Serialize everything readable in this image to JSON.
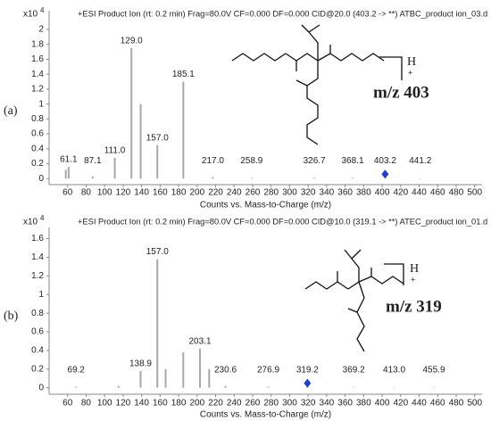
{
  "chart_data": [
    {
      "type": "bar",
      "panel_label": "(a)",
      "title": "+ESI Product Ion (rt: 0.2 min) Frag=80.0V CF=0.000 DF=0.000 CID@20.0 (403.2 -> **) ATBC_product ion_03.d",
      "x_label": "Counts vs. Mass-to-Charge (m/z)",
      "y_scale_label": "x10",
      "y_scale_exponent": "4",
      "annotation": "m/z 403",
      "ion_label": "H",
      "charge_label": "+",
      "x": [
        58,
        61.1,
        87.1,
        111.0,
        129.0,
        139,
        157.0,
        185.1,
        217.0,
        258.9,
        326.7,
        368.1,
        403.2,
        441.2
      ],
      "values": [
        0.12,
        0.16,
        0.03,
        0.28,
        1.75,
        1.0,
        0.45,
        1.3,
        0.02,
        0.01,
        0.01,
        0.01,
        0.01,
        0.005
      ],
      "x_labels": [
        null,
        "61.1",
        "87.1",
        "111.0",
        "129.0",
        null,
        "157.0",
        "185.1",
        "217.0",
        "258.9",
        "326.7",
        "368.1",
        "403.2",
        "441.2"
      ],
      "precursor": 403.2,
      "color": "#a8a8a8",
      "precursor_color": "#1f3fcf",
      "xlim": [
        40,
        508
      ],
      "xticks": [
        60,
        80,
        100,
        120,
        140,
        160,
        180,
        200,
        220,
        240,
        260,
        280,
        300,
        320,
        340,
        360,
        380,
        400,
        420,
        440,
        460,
        480,
        500
      ],
      "ylim": [
        -0.08,
        2.25
      ],
      "yticks": [
        0,
        0.2,
        0.4,
        0.6,
        0.8,
        1,
        1.2,
        1.4,
        1.6,
        1.8,
        2
      ]
    },
    {
      "type": "bar",
      "panel_label": "(b)",
      "title": "+ESI Product Ion (rt: 0.2 min) Frag=80.0V CF=0.000 DF=0.000 CID@10.0 (319.1 -> **) ATEC_product ion_01.d",
      "x_label": "Counts vs. Mass-to-Charge (m/z)",
      "y_scale_label": "x10",
      "y_scale_exponent": "4",
      "annotation": "m/z 319",
      "ion_label": "H",
      "charge_label": "+",
      "x": [
        69.2,
        115,
        138.9,
        157.0,
        166,
        185,
        203.1,
        213,
        230.6,
        276.9,
        319.2,
        369.2,
        413.0,
        455.9
      ],
      "values": [
        0.01,
        0.02,
        0.18,
        1.38,
        0.2,
        0.38,
        0.42,
        0.2,
        0.02,
        0.01,
        0.01,
        0.005,
        0.005,
        0.005
      ],
      "x_labels": [
        "69.2",
        null,
        "138.9",
        "157.0",
        null,
        null,
        "203.1",
        null,
        "230.6",
        "276.9",
        "319.2",
        "369.2",
        "413.0",
        "455.9"
      ],
      "precursor": 319.2,
      "color": "#a8a8a8",
      "precursor_color": "#1f3fcf",
      "xlim": [
        40,
        508
      ],
      "xticks": [
        60,
        80,
        100,
        120,
        140,
        160,
        180,
        200,
        220,
        240,
        260,
        280,
        300,
        320,
        340,
        360,
        380,
        400,
        420,
        440,
        460,
        480,
        500
      ],
      "ylim": [
        -0.07,
        1.72
      ],
      "yticks": [
        0,
        0.2,
        0.4,
        0.6,
        0.8,
        1,
        1.2,
        1.4,
        1.6
      ]
    }
  ]
}
